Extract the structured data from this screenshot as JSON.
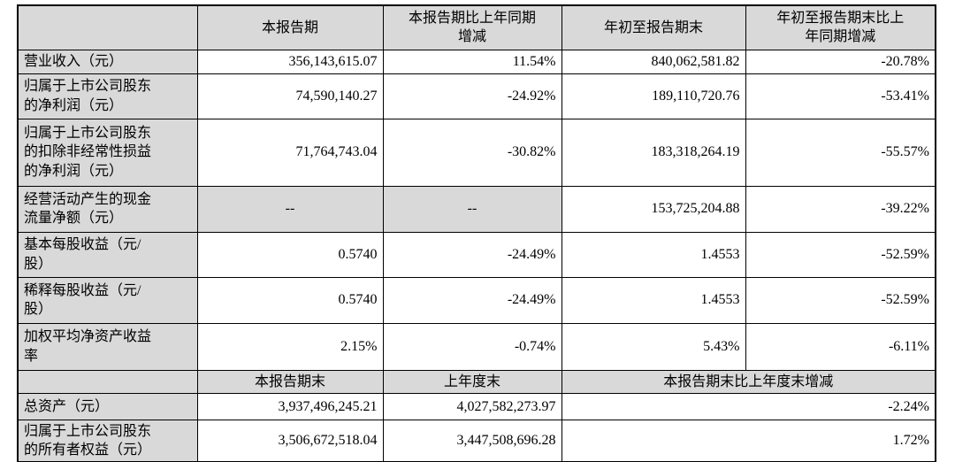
{
  "table": {
    "header": {
      "metric_label": "",
      "columns": [
        "本报告期",
        "本报告期比上年同期\n增减",
        "年初至报告期末",
        "年初至报告期末比上\n年同期增减"
      ]
    },
    "rows": [
      {
        "label": "营业收入（元）",
        "values": [
          "356,143,615.07",
          "11.54%",
          "840,062,581.82",
          "-20.78%"
        ]
      },
      {
        "label": "归属于上市公司股东\n的净利润（元）",
        "values": [
          "74,590,140.27",
          "-24.92%",
          "189,110,720.76",
          "-53.41%"
        ]
      },
      {
        "label": "归属于上市公司股东\n的扣除非经常性损益\n的净利润（元）",
        "values": [
          "71,764,743.04",
          "-30.82%",
          "183,318,264.19",
          "-55.57%"
        ]
      },
      {
        "label": "经营活动产生的现金\n流量净额（元）",
        "values": [
          "--",
          "--",
          "153,725,204.88",
          "-39.22%"
        ]
      },
      {
        "label": "基本每股收益（元/\n股）",
        "values": [
          "0.5740",
          "-24.49%",
          "1.4553",
          "-52.59%"
        ]
      },
      {
        "label": "稀释每股收益（元/\n股）",
        "values": [
          "0.5740",
          "-24.49%",
          "1.4553",
          "-52.59%"
        ]
      },
      {
        "label": "加权平均净资产收益\n率",
        "values": [
          "2.15%",
          "-0.74%",
          "5.43%",
          "-6.11%"
        ]
      }
    ],
    "section2": {
      "header": {
        "metric_label": "",
        "columns": [
          "本报告期末",
          "上年度末",
          "本报告期末比上年度末增减"
        ]
      },
      "rows": [
        {
          "label": "总资产（元）",
          "values": [
            "3,937,496,245.21",
            "4,027,582,273.97",
            "-2.24%"
          ]
        },
        {
          "label": "归属于上市公司股东\n的所有者权益（元）",
          "values": [
            "3,506,672,518.04",
            "3,447,508,696.28",
            "1.72%"
          ]
        }
      ]
    },
    "colors": {
      "shaded_cell_bg": "#d9d9d9",
      "border": "#000000",
      "text": "#000000"
    }
  }
}
